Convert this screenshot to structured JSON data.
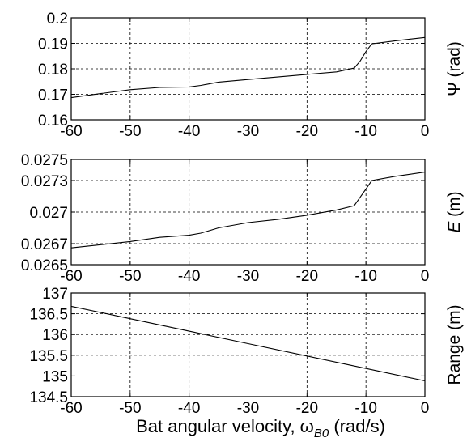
{
  "chart_data": [
    {
      "type": "line",
      "ylabel": "Ψ (rad)",
      "xlim": [
        -60,
        0
      ],
      "ylim": [
        0.16,
        0.2
      ],
      "xticks": [
        -60,
        -50,
        -40,
        -30,
        -20,
        -10,
        0
      ],
      "yticks": [
        0.16,
        0.17,
        0.18,
        0.19,
        0.2
      ],
      "ytick_labels": [
        "0.16",
        "0.17",
        "0.18",
        "0.19",
        "0.2"
      ],
      "grid": true,
      "series": [
        {
          "x": [
            -60,
            -55,
            -50,
            -45,
            -40,
            -38,
            -35,
            -30,
            -25,
            -20,
            -15,
            -12,
            -11,
            -10,
            -9,
            -5,
            0
          ],
          "values": [
            0.1687,
            0.1703,
            0.1718,
            0.1727,
            0.1729,
            0.1735,
            0.1748,
            0.1758,
            0.1768,
            0.1778,
            0.1788,
            0.1803,
            0.183,
            0.1868,
            0.1898,
            0.191,
            0.1923
          ]
        }
      ]
    },
    {
      "type": "line",
      "ylabel": "E (m)",
      "xlim": [
        -60,
        0
      ],
      "ylim": [
        0.0265,
        0.0275
      ],
      "xticks": [
        -60,
        -50,
        -40,
        -30,
        -20,
        -10,
        0
      ],
      "yticks": [
        0.0265,
        0.0267,
        0.027,
        0.0273,
        0.0275
      ],
      "ytick_labels": [
        "0.0265",
        "0.0267",
        "0.027",
        "0.0273",
        "0.0275"
      ],
      "grid": true,
      "series": [
        {
          "x": [
            -60,
            -55,
            -50,
            -45,
            -40,
            -38,
            -35,
            -30,
            -25,
            -20,
            -15,
            -12,
            -11,
            -10,
            -9,
            -5,
            0
          ],
          "values": [
            0.02666,
            0.02669,
            0.02672,
            0.02676,
            0.02678,
            0.0268,
            0.02685,
            0.0269,
            0.02693,
            0.02697,
            0.02702,
            0.02706,
            0.02714,
            0.02722,
            0.0273,
            0.02734,
            0.02738
          ]
        }
      ]
    },
    {
      "type": "line",
      "ylabel": "Range (m)",
      "xlabel": "Bat angular velocity, ω",
      "xlabel_sub": "B0",
      "xlabel_unit": " (rad/s)",
      "xlim": [
        -60,
        0
      ],
      "ylim": [
        134.5,
        137
      ],
      "xticks": [
        -60,
        -50,
        -40,
        -30,
        -20,
        -10,
        0
      ],
      "yticks": [
        134.5,
        135,
        135.5,
        136,
        136.5,
        137
      ],
      "ytick_labels": [
        "134.5",
        "135",
        "135.5",
        "136",
        "136.5",
        "137"
      ],
      "grid": true,
      "series": [
        {
          "x": [
            -60,
            -50,
            -40,
            -30,
            -20,
            -10,
            0
          ],
          "values": [
            136.68,
            136.38,
            136.08,
            135.78,
            135.48,
            135.18,
            134.88
          ]
        }
      ]
    }
  ]
}
